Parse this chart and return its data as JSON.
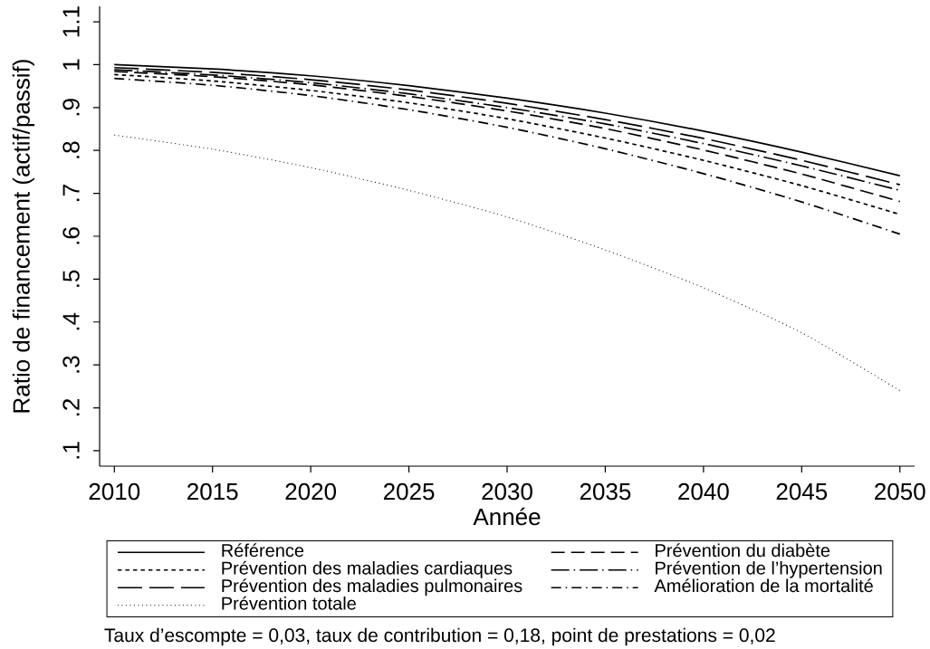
{
  "chart_data": {
    "type": "line",
    "xlabel": "Année",
    "ylabel": "Ratio de financement (actif/passif)",
    "x": [
      2010,
      2015,
      2020,
      2025,
      2030,
      2035,
      2040,
      2045,
      2050
    ],
    "series": [
      {
        "name": "Référence",
        "color": "#000000",
        "line_style": "solid",
        "values": [
          1.0,
          0.99,
          0.974,
          0.951,
          0.922,
          0.887,
          0.845,
          0.796,
          0.741
        ]
      },
      {
        "name": "Prévention du diabète",
        "color": "#000000",
        "line_style": "dashed",
        "values": [
          0.984,
          0.972,
          0.953,
          0.926,
          0.892,
          0.851,
          0.801,
          0.745,
          0.681
        ]
      },
      {
        "name": "Prévention des maladies cardiaques",
        "color": "#000000",
        "line_style": "shortdash",
        "values": [
          0.977,
          0.962,
          0.94,
          0.911,
          0.874,
          0.829,
          0.777,
          0.718,
          0.651
        ]
      },
      {
        "name": "Prévention de l’hypertension",
        "color": "#000000",
        "line_style": "longdashdot",
        "values": [
          0.988,
          0.976,
          0.958,
          0.932,
          0.9,
          0.862,
          0.816,
          0.764,
          0.707
        ]
      },
      {
        "name": "Prévention des maladies pulmonaires",
        "color": "#000000",
        "line_style": "longdash",
        "values": [
          0.993,
          0.982,
          0.965,
          0.941,
          0.91,
          0.872,
          0.828,
          0.777,
          0.72
        ]
      },
      {
        "name": "Amélioration de la mortalité",
        "color": "#000000",
        "line_style": "dashdot",
        "values": [
          0.968,
          0.952,
          0.928,
          0.895,
          0.854,
          0.804,
          0.746,
          0.68,
          0.605
        ]
      },
      {
        "name": "Prévention totale",
        "color": "#000000",
        "line_style": "dotted",
        "values": [
          0.836,
          0.803,
          0.76,
          0.707,
          0.645,
          0.568,
          0.48,
          0.375,
          0.24
        ]
      }
    ],
    "xlim": [
      2009.25,
      2050.75
    ],
    "ylim": [
      0.064,
      1.136
    ],
    "xticks": [
      2010,
      2015,
      2020,
      2025,
      2030,
      2035,
      2040,
      2045,
      2050
    ],
    "yticks": [
      {
        "value": 0.1,
        "label": ".1"
      },
      {
        "value": 0.2,
        "label": ".2"
      },
      {
        "value": 0.3,
        "label": ".3"
      },
      {
        "value": 0.4,
        "label": ".4"
      },
      {
        "value": 0.5,
        "label": ".5"
      },
      {
        "value": 0.6,
        "label": ".6"
      },
      {
        "value": 0.7,
        "label": ".7"
      },
      {
        "value": 0.8,
        "label": ".8"
      },
      {
        "value": 0.9,
        "label": ".9"
      },
      1,
      1.1
    ],
    "grid": false,
    "legend": "bottom",
    "annotations": [
      "Taux d’escompte = 0,03, taux de contribution = 0,18, point de prestations = 0,02"
    ]
  }
}
